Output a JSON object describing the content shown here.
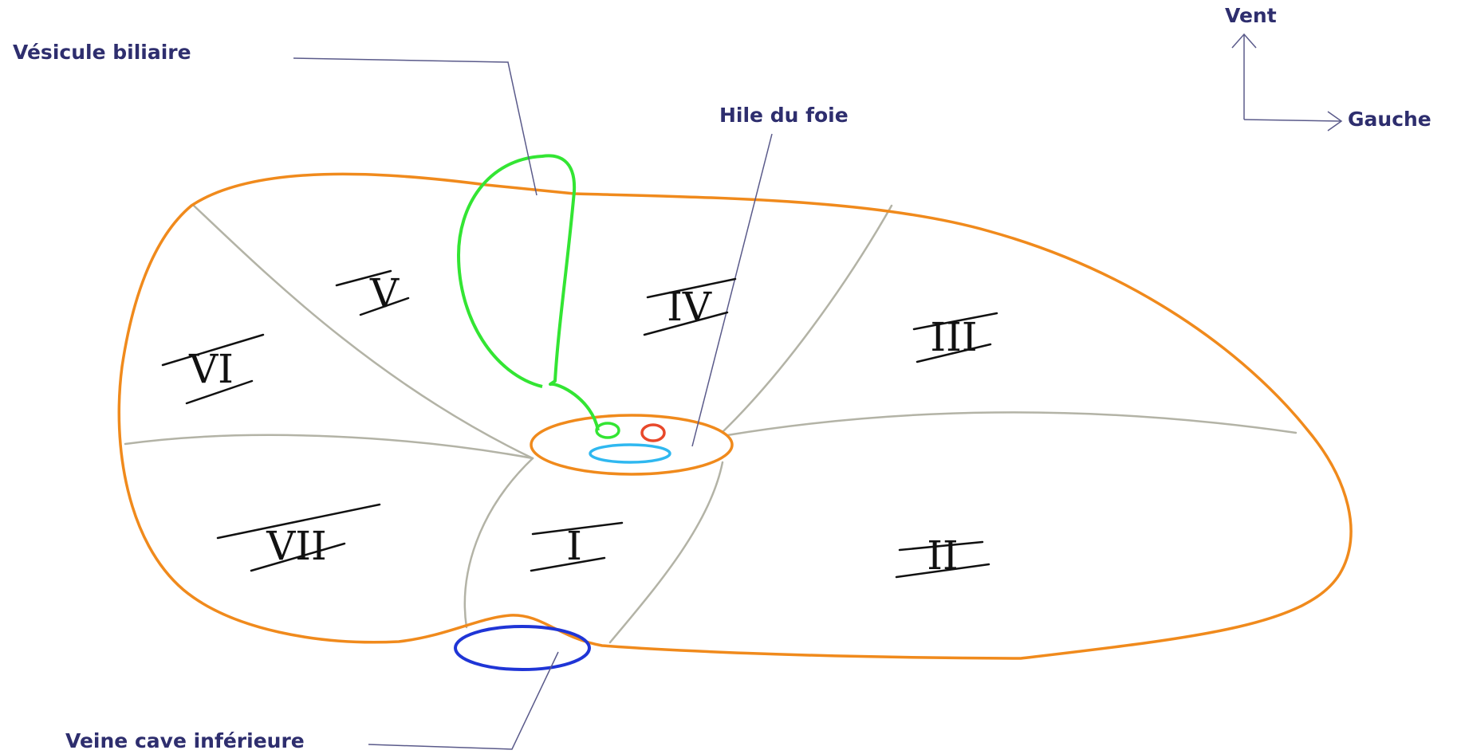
{
  "labels": {
    "gallbladder": "Vésicule biliaire",
    "hilum": "Hile du foie",
    "ivc": "Veine cave inférieure",
    "axis_up": "Vent",
    "axis_right": "Gauche"
  },
  "segments": {
    "I": "I",
    "II": "II",
    "III": "III",
    "IV": "IV",
    "V": "V",
    "VI": "VI",
    "VII": "VII"
  },
  "colors": {
    "liver_outline": "#f08a1c",
    "gallbladder": "#33e533",
    "ivc": "#1f35d6",
    "portal_vein": "#2fb8f0",
    "hepatic_artery": "#e8482a",
    "segment_boundaries": "#b3b3a6",
    "label_text": "#2e2e6e"
  }
}
